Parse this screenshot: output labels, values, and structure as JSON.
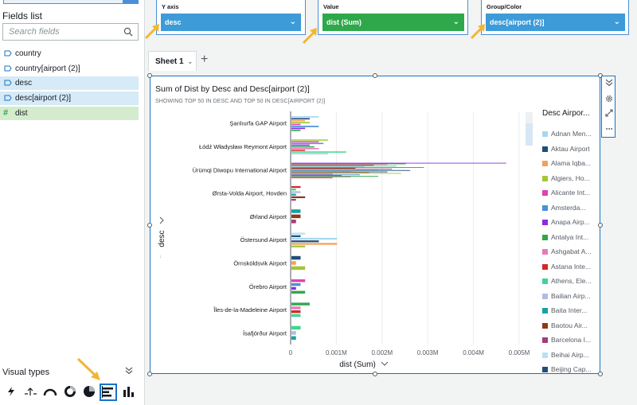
{
  "left_panel": {
    "fields_title": "Fields list",
    "search_placeholder": "Search fields",
    "fields": [
      {
        "label": "country",
        "kind": "dimension",
        "selected": false
      },
      {
        "label": "country[airport (2)]",
        "kind": "dimension",
        "selected": false
      },
      {
        "label": "desc",
        "kind": "dimension",
        "selected": true
      },
      {
        "label": "desc[airport (2)]",
        "kind": "dimension",
        "selected": true
      },
      {
        "label": "dist",
        "kind": "measure",
        "selected": true
      }
    ],
    "visual_types_title": "Visual types",
    "visual_types": [
      "autograph-icon",
      "kpi-icon",
      "gauge-icon",
      "donut-icon",
      "pie-icon",
      "horizontal-bar-icon",
      "vertical-bar-icon"
    ]
  },
  "field_wells": {
    "y_axis": {
      "label": "Y axis",
      "value": "desc",
      "color": "#3d9bd8"
    },
    "value": {
      "label": "Value",
      "value": "dist (Sum)",
      "color": "#2ea84a"
    },
    "group": {
      "label": "Group/Color",
      "value": "desc[airport (2)]",
      "color": "#3d9bd8"
    }
  },
  "sheet": {
    "tab": "Sheet 1"
  },
  "visual": {
    "title": "Sum of Dist by Desc and Desc[airport (2)]",
    "subtitle": "SHOWING TOP 50 IN DESC AND TOP 50 IN DESC[AIRPORT (2)]",
    "y_axis_field": "desc",
    "x_axis_field": "dist (Sum)",
    "legend_title": "Desc Airpor...",
    "legend": [
      {
        "label": "Adnan Men...",
        "color": "#a6d8ef"
      },
      {
        "label": "Aktau Airport",
        "color": "#1f4e79"
      },
      {
        "label": "Alama Iqba...",
        "color": "#f5a05a"
      },
      {
        "label": "Algiers, Ho...",
        "color": "#a4c639"
      },
      {
        "label": "Alicante Int...",
        "color": "#e040b0"
      },
      {
        "label": "Amsterda...",
        "color": "#4a8fd6"
      },
      {
        "label": "Anapa Airp...",
        "color": "#8b2be2"
      },
      {
        "label": "Antalya Int...",
        "color": "#2ea84a"
      },
      {
        "label": "Ashgabat A...",
        "color": "#e87ab8"
      },
      {
        "label": "Astana Inte...",
        "color": "#d62728"
      },
      {
        "label": "Athens, Ele...",
        "color": "#3ed692"
      },
      {
        "label": "Bailian Airp...",
        "color": "#b0bde0"
      },
      {
        "label": "Baita Inter...",
        "color": "#17a2a2"
      },
      {
        "label": "Baotou Air...",
        "color": "#8c3a1a"
      },
      {
        "label": "Barcelona I...",
        "color": "#a83a7a"
      },
      {
        "label": "Beihai Airp...",
        "color": "#b5e2f3"
      },
      {
        "label": "Beijing Cap...",
        "color": "#1f4e79"
      }
    ]
  },
  "chart_data": {
    "type": "bar",
    "orientation": "horizontal",
    "title": "Sum of Dist by Desc and Desc[airport (2)]",
    "xlabel": "dist (Sum)",
    "ylabel": "desc",
    "xlim": [
      0,
      0.005
    ],
    "x_ticks": [
      "0",
      "0.001M",
      "0.002M",
      "0.003M",
      "0.004M",
      "0.005M"
    ],
    "categories": [
      "Şanlıurfa GAP Airport",
      "Łódź Władysław Reymont Airport",
      "Ürümqi Diwopu International Airport",
      "Ørsta-Volda Airport, Hovden",
      "Ørland Airport",
      "Östersund Airport",
      "Örnsköldsvik Airport",
      "Örebro Airport",
      "Îles-de-la-Madeleine Airport",
      "Ísafjörður Airport"
    ],
    "bars": [
      {
        "category": 0,
        "values": [
          0.0006,
          0.0004,
          0.0003,
          0.0004,
          0.0002,
          0.0006,
          0.0003,
          0.0002
        ]
      },
      {
        "category": 1,
        "values": [
          0.0008,
          0.0006,
          0.0007,
          0.0004,
          0.0005,
          0.0006,
          0.0003,
          0.0012,
          0.0008
        ]
      },
      {
        "category": 2,
        "values": [
          0.0047,
          0.0025,
          0.0021,
          0.0018,
          0.0023,
          0.0016,
          0.0029,
          0.0014,
          0.0022,
          0.0019,
          0.0026,
          0.0013,
          0.0021,
          0.0017,
          0.0024,
          0.0009,
          0.0015,
          0.0011,
          0.0019,
          0.0013,
          0.0009
        ]
      },
      {
        "category": 3,
        "values": [
          0.0002,
          0.0001,
          0.0002,
          0.0001,
          0.0003,
          0.0001
        ]
      },
      {
        "category": 4,
        "values": [
          0.0002,
          0.0002,
          0.0001
        ]
      },
      {
        "category": 5,
        "values": [
          0.0003,
          0.0002,
          0.001,
          0.0006,
          0.001,
          0.0003
        ]
      },
      {
        "category": 6,
        "values": [
          0.0002,
          0.0001,
          0.0003
        ]
      },
      {
        "category": 7,
        "values": [
          0.0003,
          0.0002,
          0.0001,
          0.0003
        ]
      },
      {
        "category": 8,
        "values": [
          0.0004,
          0.0002,
          0.0002,
          0.0002
        ]
      },
      {
        "category": 9,
        "values": [
          0.0002,
          0.0001,
          0.0001
        ]
      }
    ]
  }
}
